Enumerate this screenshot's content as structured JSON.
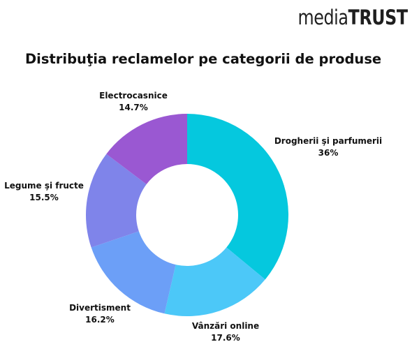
{
  "brand": {
    "logo_light": "media",
    "logo_bold": "TRUST"
  },
  "chart_data": {
    "type": "pie",
    "variant": "donut",
    "title": "Distribuţia reclamelor pe categorii de produse",
    "slices": [
      {
        "label": "Drogherii şi parfumerii",
        "value": 36,
        "value_label": "36%",
        "color": "#05c8de"
      },
      {
        "label": "Vânzări online",
        "value": 17.6,
        "value_label": "17.6%",
        "color": "#4cc8f8"
      },
      {
        "label": "Divertisment",
        "value": 16.2,
        "value_label": "16.2%",
        "color": "#6c9ff7"
      },
      {
        "label": "Legume şi fructe",
        "value": 15.5,
        "value_label": "15.5%",
        "color": "#7f84ea"
      },
      {
        "label": "Electrocasnice",
        "value": 14.7,
        "value_label": "14.7%",
        "color": "#9a58d2"
      }
    ]
  }
}
